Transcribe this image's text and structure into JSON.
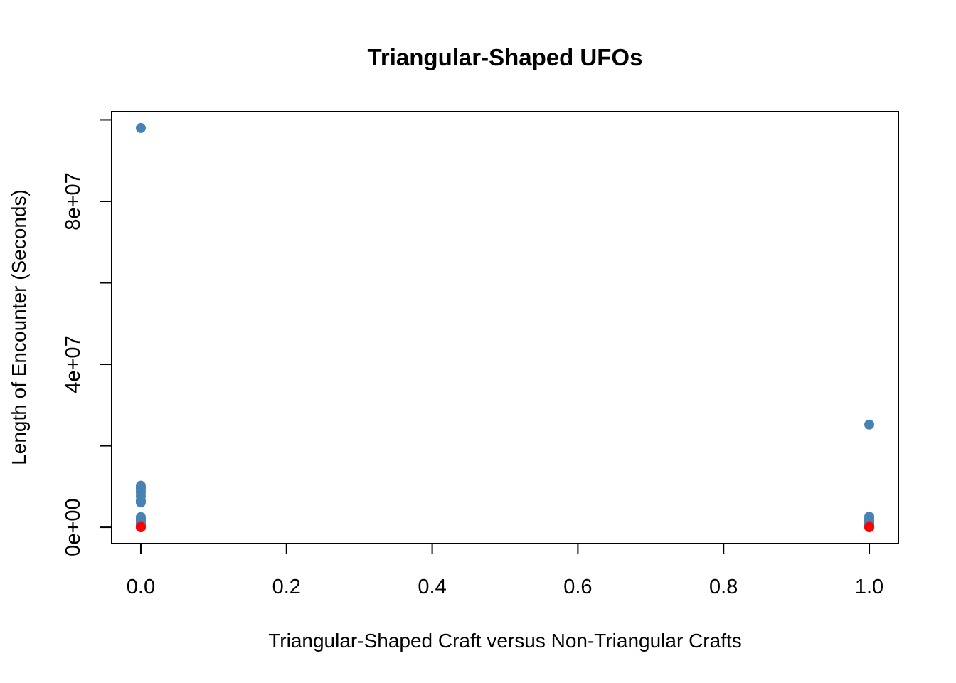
{
  "chart_data": {
    "type": "scatter",
    "title": "Triangular-Shaped UFOs",
    "xlabel": "Triangular-Shaped Craft versus Non-Triangular Crafts",
    "ylabel": "Length of Encounter (Seconds)",
    "xlim": [
      -0.04,
      1.04
    ],
    "ylim": [
      -4000000,
      102000000
    ],
    "x_ticks": [
      {
        "value": 0.0,
        "label": "0.0"
      },
      {
        "value": 0.2,
        "label": "0.2"
      },
      {
        "value": 0.4,
        "label": "0.4"
      },
      {
        "value": 0.6,
        "label": "0.6"
      },
      {
        "value": 0.8,
        "label": "0.8"
      },
      {
        "value": 1.0,
        "label": "1.0"
      }
    ],
    "y_ticks": [
      {
        "value": 0,
        "label": "0e+00"
      },
      {
        "value": 20000000,
        "label": ""
      },
      {
        "value": 40000000,
        "label": "4e+07"
      },
      {
        "value": 60000000,
        "label": ""
      },
      {
        "value": 80000000,
        "label": "8e+07"
      },
      {
        "value": 100000000,
        "label": ""
      }
    ],
    "grid": false,
    "series": [
      {
        "color": "#4682B4",
        "points": [
          {
            "x": 0,
            "y": 98000000
          },
          {
            "x": 0,
            "y": 10200000
          },
          {
            "x": 0,
            "y": 9800000
          },
          {
            "x": 0,
            "y": 9300000
          },
          {
            "x": 0,
            "y": 8600000
          },
          {
            "x": 0,
            "y": 7600000
          },
          {
            "x": 0,
            "y": 6500000
          },
          {
            "x": 0,
            "y": 6100000
          },
          {
            "x": 0,
            "y": 2500000
          },
          {
            "x": 0,
            "y": 2000000
          },
          {
            "x": 0,
            "y": 1500000
          },
          {
            "x": 0,
            "y": 1000000
          },
          {
            "x": 0,
            "y": 500000
          },
          {
            "x": 1,
            "y": 25200000
          },
          {
            "x": 1,
            "y": 2600000
          },
          {
            "x": 1,
            "y": 2100000
          },
          {
            "x": 1,
            "y": 1600000
          },
          {
            "x": 1,
            "y": 1100000
          },
          {
            "x": 1,
            "y": 600000
          }
        ]
      },
      {
        "color": "#FF0000",
        "points": [
          {
            "x": 0,
            "y": 100000
          },
          {
            "x": 0,
            "y": 0
          },
          {
            "x": 1,
            "y": 100000
          },
          {
            "x": 1,
            "y": 0
          }
        ]
      }
    ]
  }
}
